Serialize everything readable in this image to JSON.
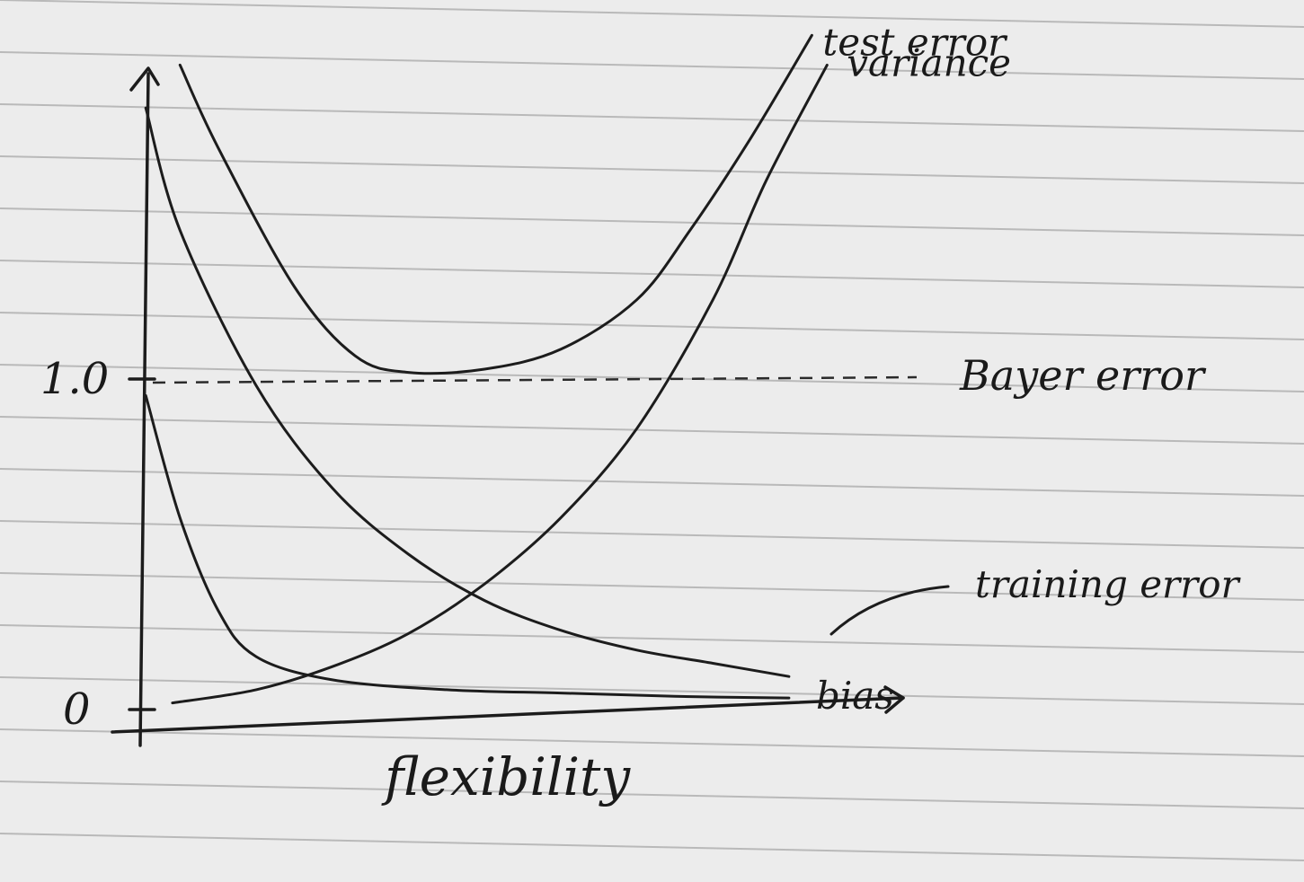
{
  "chart_data": {
    "type": "line",
    "xlabel": "flexibility",
    "ylabel": "",
    "xlim": [
      0,
      10
    ],
    "ylim": [
      0,
      1.8
    ],
    "yticks": [
      {
        "value": 0,
        "label": "0"
      },
      {
        "value": 1.0,
        "label": "1.0"
      }
    ],
    "reference_lines": [
      {
        "name": "Bayer error",
        "y": 1.0,
        "style": "dashed"
      }
    ],
    "series": [
      {
        "name": "test error",
        "x": [
          0.5,
          1.0,
          2.0,
          2.8,
          3.5,
          4.5,
          5.5,
          6.5,
          7.2,
          8.0,
          8.8
        ],
        "y": [
          1.95,
          1.7,
          1.28,
          1.07,
          1.02,
          1.03,
          1.09,
          1.24,
          1.45,
          1.73,
          2.04
        ]
      },
      {
        "name": "variance",
        "x": [
          0.4,
          1.5,
          2.5,
          3.5,
          4.5,
          5.5,
          6.5,
          7.5,
          8.2,
          9.0
        ],
        "y": [
          0.02,
          0.06,
          0.13,
          0.23,
          0.38,
          0.58,
          0.85,
          1.24,
          1.6,
          1.95
        ]
      },
      {
        "name": "training error",
        "x": [
          0.05,
          0.5,
          1.5,
          2.5,
          3.5,
          4.5,
          5.5,
          6.5,
          7.5,
          8.5
        ],
        "y": [
          1.82,
          1.45,
          0.98,
          0.67,
          0.47,
          0.33,
          0.24,
          0.18,
          0.14,
          0.1
        ]
      },
      {
        "name": "bias",
        "x": [
          0.05,
          0.5,
          1.0,
          1.5,
          2.5,
          4.0,
          5.5,
          7.0,
          8.5
        ],
        "y": [
          0.95,
          0.58,
          0.3,
          0.16,
          0.09,
          0.06,
          0.05,
          0.04,
          0.035
        ]
      }
    ]
  }
}
